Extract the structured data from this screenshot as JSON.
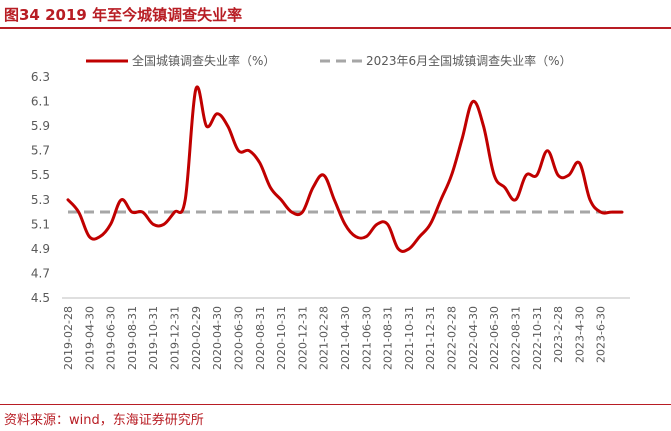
{
  "figure": {
    "title": "图34  2019 年至今城镇调查失业率",
    "source": "资料来源：wind，东海证券研究所"
  },
  "colors": {
    "accent": "#b81d24",
    "series_main": "#c00000",
    "series_ref": "#a6a6a6",
    "text": "#595959"
  },
  "chart_data": {
    "type": "line",
    "ylim": [
      4.5,
      6.3
    ],
    "yticks": [
      "6.3",
      "6.1",
      "5.9",
      "5.7",
      "5.5",
      "5.3",
      "5.1",
      "4.9",
      "4.7",
      "4.5"
    ],
    "tick_dates": [
      "2019-02-28",
      "2019-04-30",
      "2019-06-30",
      "2019-08-31",
      "2019-10-31",
      "2019-12-31",
      "2020-02-29",
      "2020-04-30",
      "2020-06-30",
      "2020-08-31",
      "2020-10-31",
      "2020-12-31",
      "2021-02-28",
      "2021-04-30",
      "2021-06-30",
      "2021-08-31",
      "2021-10-31",
      "2021-12-31",
      "2022-02-28",
      "2022-04-30",
      "2022-06-30",
      "2022-08-31",
      "2022-10-31",
      "2023-2-28",
      "2023-4-30",
      "2023-6-30"
    ],
    "legend_position": "top",
    "grid": false,
    "series": [
      {
        "name": "全国城镇调查失业率（%）",
        "style": "solid",
        "x": [
          "2019-02",
          "2019-03",
          "2019-04",
          "2019-05",
          "2019-06",
          "2019-07",
          "2019-08",
          "2019-09",
          "2019-10",
          "2019-11",
          "2019-12",
          "2020-01",
          "2020-02",
          "2020-03",
          "2020-04",
          "2020-05",
          "2020-06",
          "2020-07",
          "2020-08",
          "2020-09",
          "2020-10",
          "2020-11",
          "2020-12",
          "2021-01",
          "2021-02",
          "2021-03",
          "2021-04",
          "2021-05",
          "2021-06",
          "2021-07",
          "2021-08",
          "2021-09",
          "2021-10",
          "2021-11",
          "2021-12",
          "2022-01",
          "2022-02",
          "2022-03",
          "2022-04",
          "2022-05",
          "2022-06",
          "2022-07",
          "2022-08",
          "2022-09",
          "2022-10",
          "2022-11",
          "2022-12",
          "2023-01",
          "2023-02",
          "2023-03",
          "2023-04",
          "2023-05",
          "2023-06"
        ],
        "values": [
          5.3,
          5.2,
          5.0,
          5.0,
          5.1,
          5.3,
          5.2,
          5.2,
          5.1,
          5.1,
          5.2,
          5.3,
          6.2,
          5.9,
          6.0,
          5.9,
          5.7,
          5.7,
          5.6,
          5.4,
          5.3,
          5.2,
          5.2,
          5.4,
          5.5,
          5.3,
          5.1,
          5.0,
          5.0,
          5.1,
          5.1,
          4.9,
          4.9,
          5.0,
          5.1,
          5.3,
          5.5,
          5.8,
          6.1,
          5.9,
          5.5,
          5.4,
          5.3,
          5.5,
          5.5,
          5.7,
          5.5,
          5.5,
          5.6,
          5.3,
          5.2,
          5.2,
          5.2
        ]
      },
      {
        "name": "2023年6月全国城镇调查失业率（%）",
        "style": "dashed",
        "value": 5.2
      }
    ]
  }
}
